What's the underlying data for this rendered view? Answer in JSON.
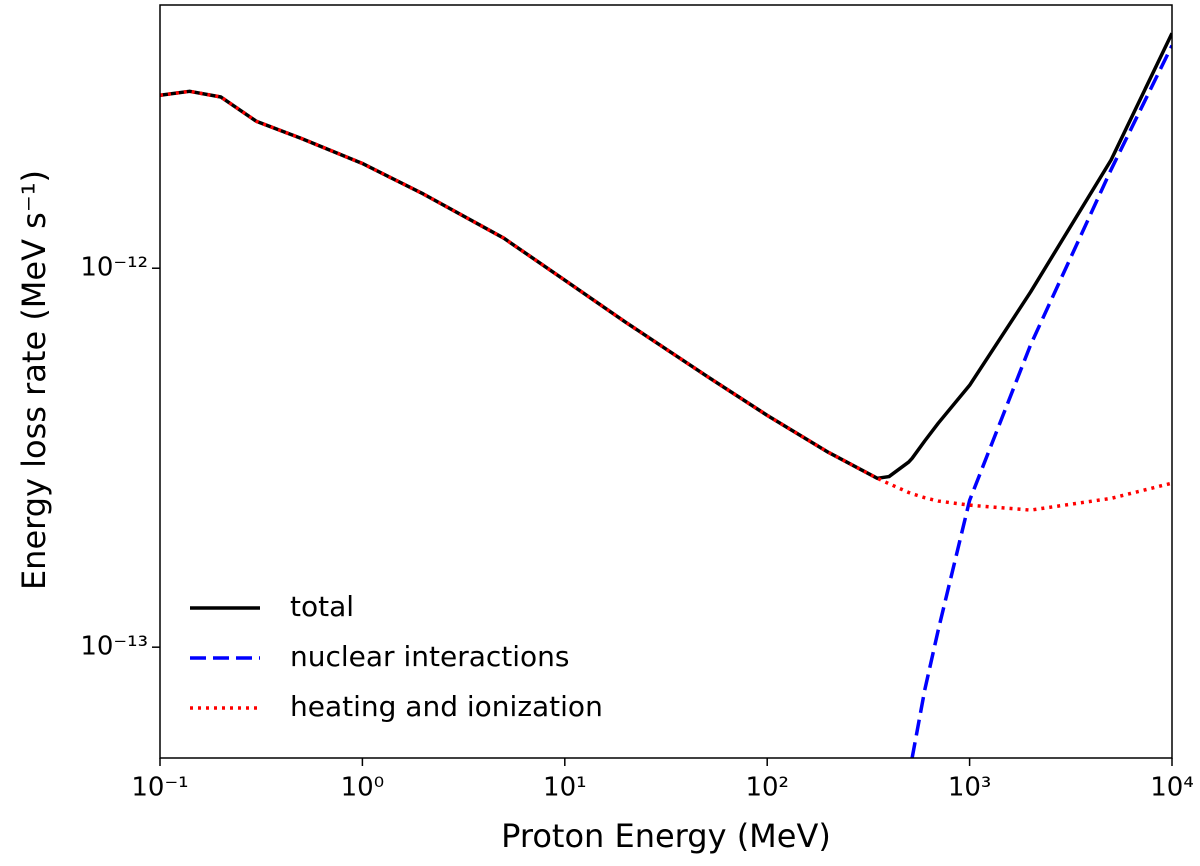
{
  "chart_data": {
    "type": "line",
    "xlabel": "Proton Energy (MeV)",
    "ylabel": "Energy loss rate (MeV s⁻¹)",
    "xlog": true,
    "ylog": true,
    "xlim": [
      0.1,
      10000
    ],
    "ylim": [
      5.1e-14,
      4.95e-12
    ],
    "xticks": [
      {
        "value": 0.1,
        "label": "10⁻¹"
      },
      {
        "value": 1,
        "label": "10⁰"
      },
      {
        "value": 10,
        "label": "10¹"
      },
      {
        "value": 100,
        "label": "10²"
      },
      {
        "value": 1000,
        "label": "10³"
      },
      {
        "value": 10000,
        "label": "10⁴"
      }
    ],
    "yticks": [
      {
        "value": 1e-13,
        "label": "10⁻¹³"
      },
      {
        "value": 1e-12,
        "label": "10⁻¹²"
      }
    ],
    "legend": "lower left",
    "x": [
      0.1,
      0.14,
      0.2,
      0.3,
      0.5,
      1,
      2,
      5,
      10,
      20,
      50,
      100,
      200,
      350,
      400,
      500,
      520,
      600,
      700,
      1000,
      2000,
      5000,
      10000
    ],
    "series": [
      {
        "name": "total",
        "color": "#000000",
        "style": "solid",
        "values": [
          2.86e-12,
          2.93e-12,
          2.83e-12,
          2.44e-12,
          2.2e-12,
          1.89e-12,
          1.57e-12,
          1.2e-12,
          9.3e-13,
          7.2e-13,
          5.2e-13,
          4.09e-13,
          3.27e-13,
          2.79e-13,
          2.82e-13,
          3.08e-13,
          3.15e-13,
          3.5e-13,
          3.9e-13,
          4.91e-13,
          8.65e-13,
          1.93e-12,
          4.17e-12
        ]
      },
      {
        "name": "nuclear interactions",
        "color": "#0000ff",
        "style": "dashed",
        "values": [
          null,
          null,
          null,
          null,
          null,
          null,
          null,
          null,
          null,
          null,
          null,
          null,
          null,
          null,
          null,
          null,
          5.1e-14,
          7.7e-14,
          1.11e-13,
          2.44e-13,
          6.27e-13,
          1.82e-12,
          3.87e-12
        ]
      },
      {
        "name": "heating and ionization",
        "color": "#ff0000",
        "style": "dotted",
        "values": [
          2.86e-12,
          2.93e-12,
          2.83e-12,
          2.44e-12,
          2.2e-12,
          1.89e-12,
          1.57e-12,
          1.2e-12,
          9.3e-13,
          7.2e-13,
          5.2e-13,
          4.09e-13,
          3.27e-13,
          2.79e-13,
          2.7e-13,
          2.56e-13,
          2.54e-13,
          2.48e-13,
          2.43e-13,
          2.37e-13,
          2.3e-13,
          2.47e-13,
          2.71e-13
        ]
      }
    ]
  }
}
